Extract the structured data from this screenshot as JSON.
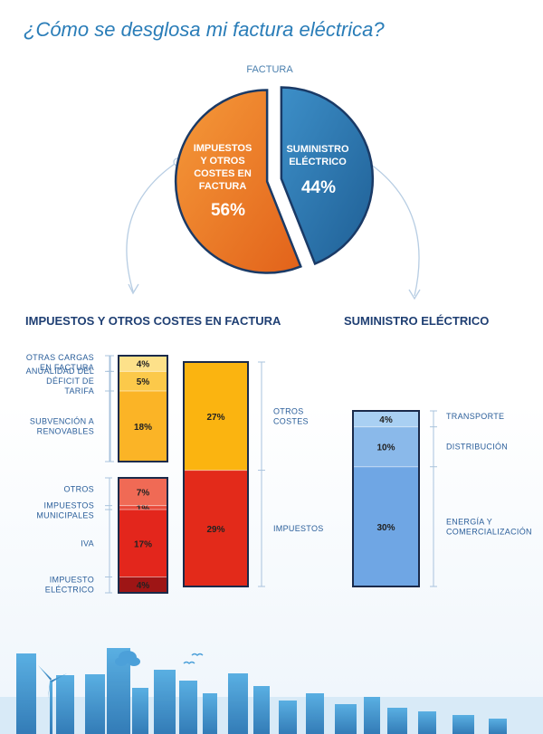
{
  "title": "¿Cómo se desglosa mi factura eléctrica?",
  "chart_data": {
    "type": "pie",
    "title": "FACTURA",
    "slices": [
      {
        "label_lines": [
          "IMPUESTOS",
          "Y OTROS",
          "COSTES EN",
          "FACTURA"
        ],
        "value": 56,
        "value_label": "56%",
        "color": "#f07a28"
      },
      {
        "label_lines": [
          "SUMINISTRO",
          "ELÉCTRICO"
        ],
        "value": 44,
        "value_label": "44%",
        "color": "#2a7db8"
      }
    ],
    "breakdowns": [
      {
        "type": "bar",
        "title": "IMPUESTOS Y OTROS COSTES EN FACTURA",
        "stacks": [
          {
            "segments": [
              {
                "label": "OTRAS CARGAS EN FACTURA",
                "value": 4,
                "value_label": "4%",
                "color": "#fde18a"
              },
              {
                "label": "ANUALIDAD DEL DÉFICIT DE TARIFA",
                "value": 5,
                "value_label": "5%",
                "color": "#fcc94a"
              },
              {
                "label": "SUBVENCIÓN A RENOVABLES",
                "value": 18,
                "value_label": "18%",
                "color": "#fbb426"
              }
            ]
          },
          {
            "segments": [
              {
                "label": "OTROS",
                "value": 7,
                "value_label": "7%",
                "color": "#f06a55"
              },
              {
                "label": "IMPUESTOS MUNICIPALES",
                "value": 1,
                "value_label": "1%",
                "color": "#e84a3a"
              },
              {
                "label": "IVA",
                "value": 17,
                "value_label": "17%",
                "color": "#e3261c"
              },
              {
                "label": "IMPUESTO ELÉCTRICO",
                "value": 4,
                "value_label": "4%",
                "color": "#9e1515"
              }
            ]
          },
          {
            "segments": [
              {
                "label": "OTROS COSTES",
                "value": 27,
                "value_label": "27%",
                "color": "#fbb410"
              },
              {
                "label": "IMPUESTOS",
                "value": 29,
                "value_label": "29%",
                "color": "#e32a1a"
              }
            ]
          }
        ]
      },
      {
        "type": "bar",
        "title": "SUMINISTRO ELÉCTRICO",
        "stacks": [
          {
            "segments": [
              {
                "label": "TRANSPORTE",
                "value": 4,
                "value_label": "4%",
                "color": "#a9d0f3"
              },
              {
                "label": "DISTRIBUCIÓN",
                "value": 10,
                "value_label": "10%",
                "color": "#8ab9ea"
              },
              {
                "label": "ENERGÍA Y COMERCIALIZACIÓN",
                "value": 30,
                "value_label": "30%",
                "color": "#6fa6e4"
              }
            ]
          }
        ]
      }
    ]
  }
}
